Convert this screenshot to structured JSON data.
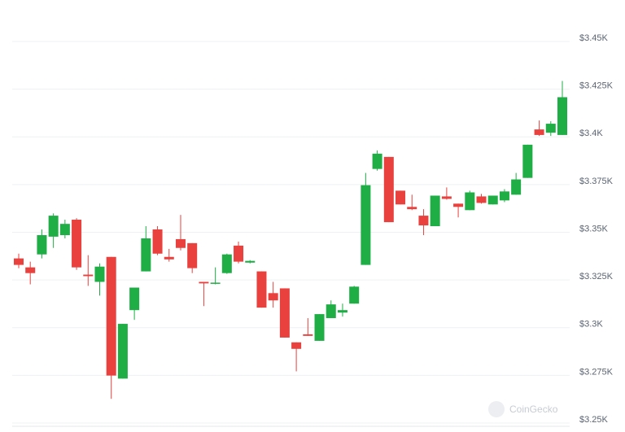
{
  "chart_data": {
    "type": "candlestick",
    "watermark": "CoinGecko",
    "up_color": "#1fae45",
    "down_color": "#e8413e",
    "open": [
      3336.3,
      3331.6,
      3338.4,
      3347.7,
      3348.5,
      3356.6,
      3327.8,
      3324.0,
      3337.1,
      3273.3,
      3309.2,
      3329.5,
      3351.5,
      3337.1,
      3346.4,
      3344.3,
      3324.0,
      3323.2,
      3328.6,
      3343.0,
      3334.1,
      3329.5,
      3318.1,
      3320.6,
      3292.3,
      3296.5,
      3293.1,
      3305.0,
      3307.9,
      3312.6,
      3332.9,
      3383.2,
      3389.5,
      3371.8,
      3363.3,
      3358.7,
      3353.2,
      3368.8,
      3365.0,
      3361.6,
      3368.8,
      3364.6,
      3366.7,
      3369.7,
      3378.5,
      3403.9,
      3402.2,
      3401.0
    ],
    "high": [
      3338.8,
      3334.6,
      3351.5,
      3359.9,
      3356.6,
      3357.4,
      3338.0,
      3333.7,
      3337.1,
      3302.0,
      3321.0,
      3353.2,
      3353.2,
      3341.3,
      3359.1,
      3344.3,
      3324.0,
      3331.6,
      3338.8,
      3345.1,
      3335.4,
      3329.5,
      3324.0,
      3320.6,
      3292.3,
      3305.0,
      3307.1,
      3314.3,
      3312.6,
      3321.9,
      3381.1,
      3392.9,
      3389.5,
      3371.8,
      3369.7,
      3362.1,
      3369.2,
      3373.5,
      3365.0,
      3371.8,
      3370.1,
      3369.2,
      3372.6,
      3381.1,
      3395.9,
      3408.6,
      3408.2,
      3429.3
    ],
    "low": [
      3331.2,
      3322.7,
      3336.3,
      3341.8,
      3346.8,
      3330.3,
      3321.9,
      3316.8,
      3262.7,
      3273.3,
      3304.1,
      3329.5,
      3338.0,
      3334.6,
      3340.5,
      3328.6,
      3311.3,
      3322.7,
      3328.2,
      3333.7,
      3333.7,
      3310.5,
      3310.5,
      3294.8,
      3277.1,
      3295.7,
      3293.1,
      3305.0,
      3305.8,
      3312.6,
      3332.9,
      3382.3,
      3355.3,
      3364.6,
      3361.6,
      3348.5,
      3353.2,
      3367.1,
      3357.8,
      3361.6,
      3365.0,
      3364.6,
      3365.8,
      3369.7,
      3378.5,
      3400.5,
      3400.5,
      3401.0
    ],
    "close": [
      3332.9,
      3328.6,
      3348.5,
      3358.7,
      3354.4,
      3331.6,
      3327.0,
      3332.0,
      3274.9,
      3302.0,
      3321.0,
      3346.8,
      3338.8,
      3335.8,
      3341.8,
      3331.2,
      3323.2,
      3323.6,
      3338.4,
      3334.6,
      3335.0,
      3310.5,
      3314.3,
      3294.8,
      3288.9,
      3295.7,
      3307.1,
      3312.2,
      3309.2,
      3321.5,
      3374.7,
      3391.2,
      3355.3,
      3364.6,
      3362.1,
      3353.6,
      3369.2,
      3367.5,
      3363.3,
      3370.9,
      3365.4,
      3369.2,
      3371.4,
      3377.7,
      3395.9,
      3401.0,
      3406.9,
      3420.8
    ],
    "ylim": [
      3250,
      3450
    ],
    "yticks": [
      {
        "value": 3250,
        "label": "$3.25K"
      },
      {
        "value": 3275,
        "label": "$3.275K"
      },
      {
        "value": 3300,
        "label": "$3.3K"
      },
      {
        "value": 3325,
        "label": "$3.325K"
      },
      {
        "value": 3350,
        "label": "$3.35K"
      },
      {
        "value": 3375,
        "label": "$3.375K"
      },
      {
        "value": 3400,
        "label": "$3.4K"
      },
      {
        "value": 3425,
        "label": "$3.425K"
      },
      {
        "value": 3450,
        "label": "$3.45K"
      }
    ],
    "grid": true
  }
}
